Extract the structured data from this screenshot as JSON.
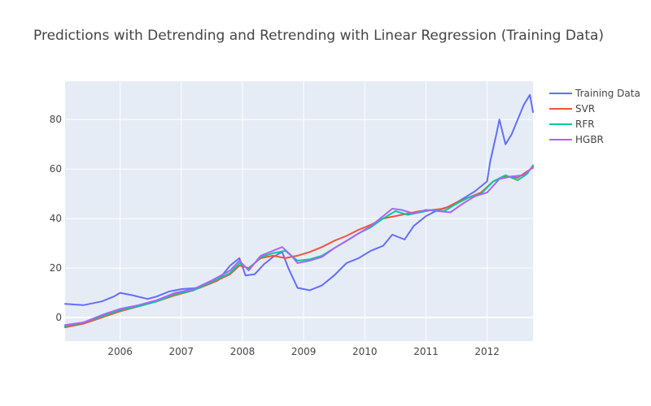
{
  "chart_data": {
    "type": "line",
    "title": "Predictions with Detrending and Retrending with Linear Regression (Training Data)",
    "xlabel": "",
    "ylabel": "",
    "x_range": [
      2005.1,
      2012.75
    ],
    "ylim": [
      -9.5,
      95.5
    ],
    "x_ticks": [
      2006,
      2007,
      2008,
      2009,
      2010,
      2011,
      2012
    ],
    "y_ticks": [
      0,
      20,
      40,
      60,
      80
    ],
    "grid": true,
    "legend_position": "top-right",
    "series": [
      {
        "name": "Training Data",
        "color": "#636efa",
        "x": [
          2005.1,
          2005.4,
          2005.7,
          2005.9,
          2006.0,
          2006.2,
          2006.45,
          2006.6,
          2006.8,
          2007.0,
          2007.3,
          2007.6,
          2007.8,
          2007.95,
          2008.05,
          2008.2,
          2008.35,
          2008.5,
          2008.65,
          2008.75,
          2008.9,
          2009.1,
          2009.3,
          2009.5,
          2009.7,
          2009.9,
          2010.1,
          2010.3,
          2010.45,
          2010.65,
          2010.8,
          2011.0,
          2011.2,
          2011.4,
          2011.6,
          2011.8,
          2012.0,
          2012.05,
          2012.15,
          2012.2,
          2012.3,
          2012.4,
          2012.5,
          2012.6,
          2012.7,
          2012.75
        ],
        "values": [
          5.5,
          5.0,
          6.5,
          8.5,
          10.0,
          9.0,
          7.5,
          8.5,
          10.5,
          11.5,
          12.0,
          15.0,
          21.0,
          24.0,
          17.0,
          17.5,
          21.5,
          24.5,
          26.5,
          20.0,
          12.0,
          11.0,
          13.0,
          17.0,
          22.0,
          24.0,
          27.0,
          29.0,
          33.5,
          31.5,
          37.0,
          41.0,
          43.5,
          45.0,
          48.0,
          51.0,
          55.0,
          63.0,
          74.0,
          80.0,
          70.0,
          74.0,
          80.0,
          86.0,
          90.0,
          83.0
        ]
      },
      {
        "name": "SVR",
        "color": "#ef553b",
        "x": [
          2005.1,
          2005.4,
          2005.7,
          2006.0,
          2006.3,
          2006.6,
          2006.9,
          2007.2,
          2007.5,
          2007.8,
          2007.95,
          2008.1,
          2008.3,
          2008.5,
          2008.7,
          2008.9,
          2009.1,
          2009.3,
          2009.5,
          2009.7,
          2009.9,
          2010.1,
          2010.3,
          2010.5,
          2010.7,
          2010.9,
          2011.1,
          2011.3,
          2011.5,
          2011.7,
          2011.9,
          2012.1,
          2012.3,
          2012.5,
          2012.65,
          2012.75
        ],
        "values": [
          -4.0,
          -2.5,
          0.0,
          2.5,
          4.5,
          6.5,
          9.0,
          11.0,
          14.0,
          17.5,
          21.0,
          20.0,
          24.0,
          25.0,
          24.0,
          25.0,
          26.5,
          28.5,
          31.0,
          33.0,
          35.5,
          37.5,
          40.0,
          41.0,
          42.0,
          43.0,
          43.5,
          44.0,
          46.5,
          48.5,
          50.5,
          55.0,
          57.0,
          56.5,
          59.0,
          60.5
        ]
      },
      {
        "name": "RFR",
        "color": "#00cc96",
        "x": [
          2005.1,
          2005.4,
          2005.7,
          2006.0,
          2006.3,
          2006.6,
          2006.9,
          2007.2,
          2007.5,
          2007.8,
          2007.95,
          2008.1,
          2008.3,
          2008.5,
          2008.7,
          2008.9,
          2009.1,
          2009.3,
          2009.5,
          2009.7,
          2009.9,
          2010.1,
          2010.3,
          2010.5,
          2010.7,
          2010.9,
          2011.1,
          2011.3,
          2011.5,
          2011.7,
          2011.9,
          2012.1,
          2012.3,
          2012.5,
          2012.65,
          2012.75
        ],
        "values": [
          -3.5,
          -2.0,
          0.5,
          3.0,
          4.5,
          6.5,
          9.5,
          11.0,
          14.5,
          18.0,
          22.0,
          19.5,
          24.5,
          26.0,
          27.0,
          23.0,
          23.5,
          25.0,
          28.0,
          31.0,
          34.0,
          36.5,
          40.0,
          43.0,
          41.5,
          42.5,
          43.5,
          43.0,
          46.0,
          48.5,
          50.0,
          55.0,
          57.5,
          55.5,
          58.0,
          61.5
        ]
      },
      {
        "name": "HGBR",
        "color": "#ab63fa",
        "x": [
          2005.1,
          2005.4,
          2005.7,
          2006.0,
          2006.3,
          2006.6,
          2006.9,
          2007.2,
          2007.5,
          2007.8,
          2007.95,
          2008.1,
          2008.3,
          2008.5,
          2008.65,
          2008.8,
          2008.9,
          2009.1,
          2009.3,
          2009.5,
          2009.7,
          2009.9,
          2010.1,
          2010.3,
          2010.45,
          2010.6,
          2010.8,
          2011.0,
          2011.2,
          2011.4,
          2011.6,
          2011.8,
          2012.0,
          2012.2,
          2012.4,
          2012.6,
          2012.75
        ],
        "values": [
          -3.0,
          -2.0,
          1.0,
          3.5,
          5.0,
          7.0,
          10.0,
          11.5,
          15.0,
          19.0,
          23.0,
          19.0,
          25.0,
          27.0,
          28.5,
          25.0,
          22.0,
          23.0,
          24.5,
          28.0,
          31.0,
          34.0,
          37.0,
          41.0,
          44.0,
          43.5,
          42.0,
          43.5,
          43.0,
          42.5,
          46.0,
          49.0,
          50.5,
          56.0,
          57.0,
          57.5,
          61.0
        ]
      }
    ]
  }
}
